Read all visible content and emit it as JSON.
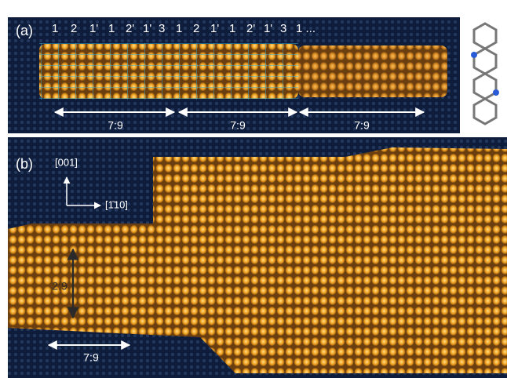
{
  "panel_a": {
    "label": "(a)",
    "sequence": [
      "1",
      "2",
      "1'",
      "1",
      "2'",
      "1'",
      "3",
      "1",
      "2",
      "1'",
      "1",
      "2'",
      "1'",
      "3",
      "1 ..."
    ],
    "ratios": [
      "7:9",
      "7:9",
      "7:9"
    ]
  },
  "panel_b": {
    "label": "(b)",
    "directions": [
      "[001]",
      "[1̄10]"
    ],
    "ratios": [
      "2:9",
      "7:9"
    ]
  }
}
